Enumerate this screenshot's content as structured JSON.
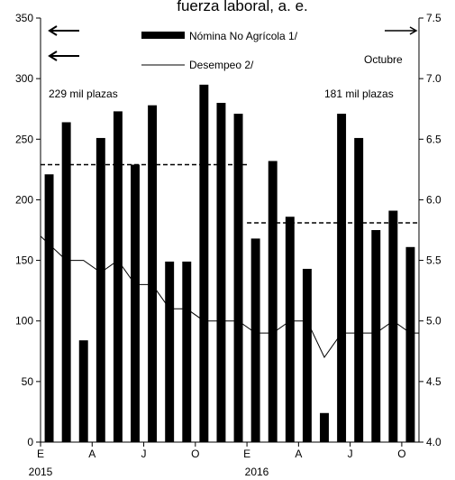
{
  "chart_data": {
    "type": "bar",
    "title": "fuerza laboral, a. e.",
    "x_tick_labels": [
      "E",
      "A",
      "J",
      "O",
      "E",
      "A",
      "J",
      "O"
    ],
    "x_year_labels": [
      "2015",
      "2016"
    ],
    "series": [
      {
        "name": "Nómina No Agrícola 1/",
        "kind": "bar",
        "axis": "left",
        "values": [
          221,
          264,
          84,
          251,
          273,
          229,
          278,
          149,
          149,
          295,
          280,
          271,
          168,
          232,
          186,
          143,
          24,
          271,
          251,
          175,
          191,
          161
        ]
      },
      {
        "name": "Desempeo 2/",
        "kind": "line",
        "axis": "right",
        "values": [
          5.7,
          5.5,
          5.5,
          5.4,
          5.5,
          5.3,
          5.3,
          5.1,
          5.1,
          5.0,
          5.0,
          5.0,
          4.9,
          4.9,
          5.0,
          5.0,
          4.7,
          4.9,
          4.9,
          4.9,
          5.0,
          4.9
        ]
      }
    ],
    "reference_lines": [
      {
        "label": "229 mil plazas",
        "value": 229,
        "from_index": 0,
        "to_index": 11
      },
      {
        "label": "181 mil plazas",
        "value": 181,
        "from_index": 12,
        "to_index": 21
      }
    ],
    "y_left": {
      "min": 0,
      "max": 350,
      "ticks": [
        0,
        50,
        100,
        150,
        200,
        250,
        300,
        350
      ]
    },
    "y_right": {
      "min": 4.0,
      "max": 7.5,
      "ticks": [
        "4.0",
        "4.5",
        "5.0",
        "5.5",
        "6.0",
        "6.5",
        "7.0",
        "7.5"
      ]
    },
    "annotations": {
      "right_note": "Octubre"
    },
    "legend_position": "top-center"
  }
}
